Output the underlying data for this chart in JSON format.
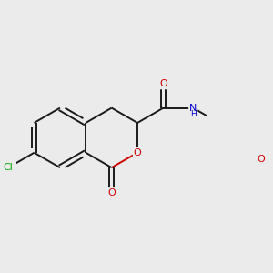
{
  "background_color": "#ebebeb",
  "bond_color": "#1a1a1a",
  "atom_colors": {
    "O": "#cc0000",
    "N": "#0000cc",
    "Cl": "#00aa00",
    "C": "#1a1a1a"
  },
  "figsize": [
    3.0,
    3.0
  ],
  "dpi": 100
}
